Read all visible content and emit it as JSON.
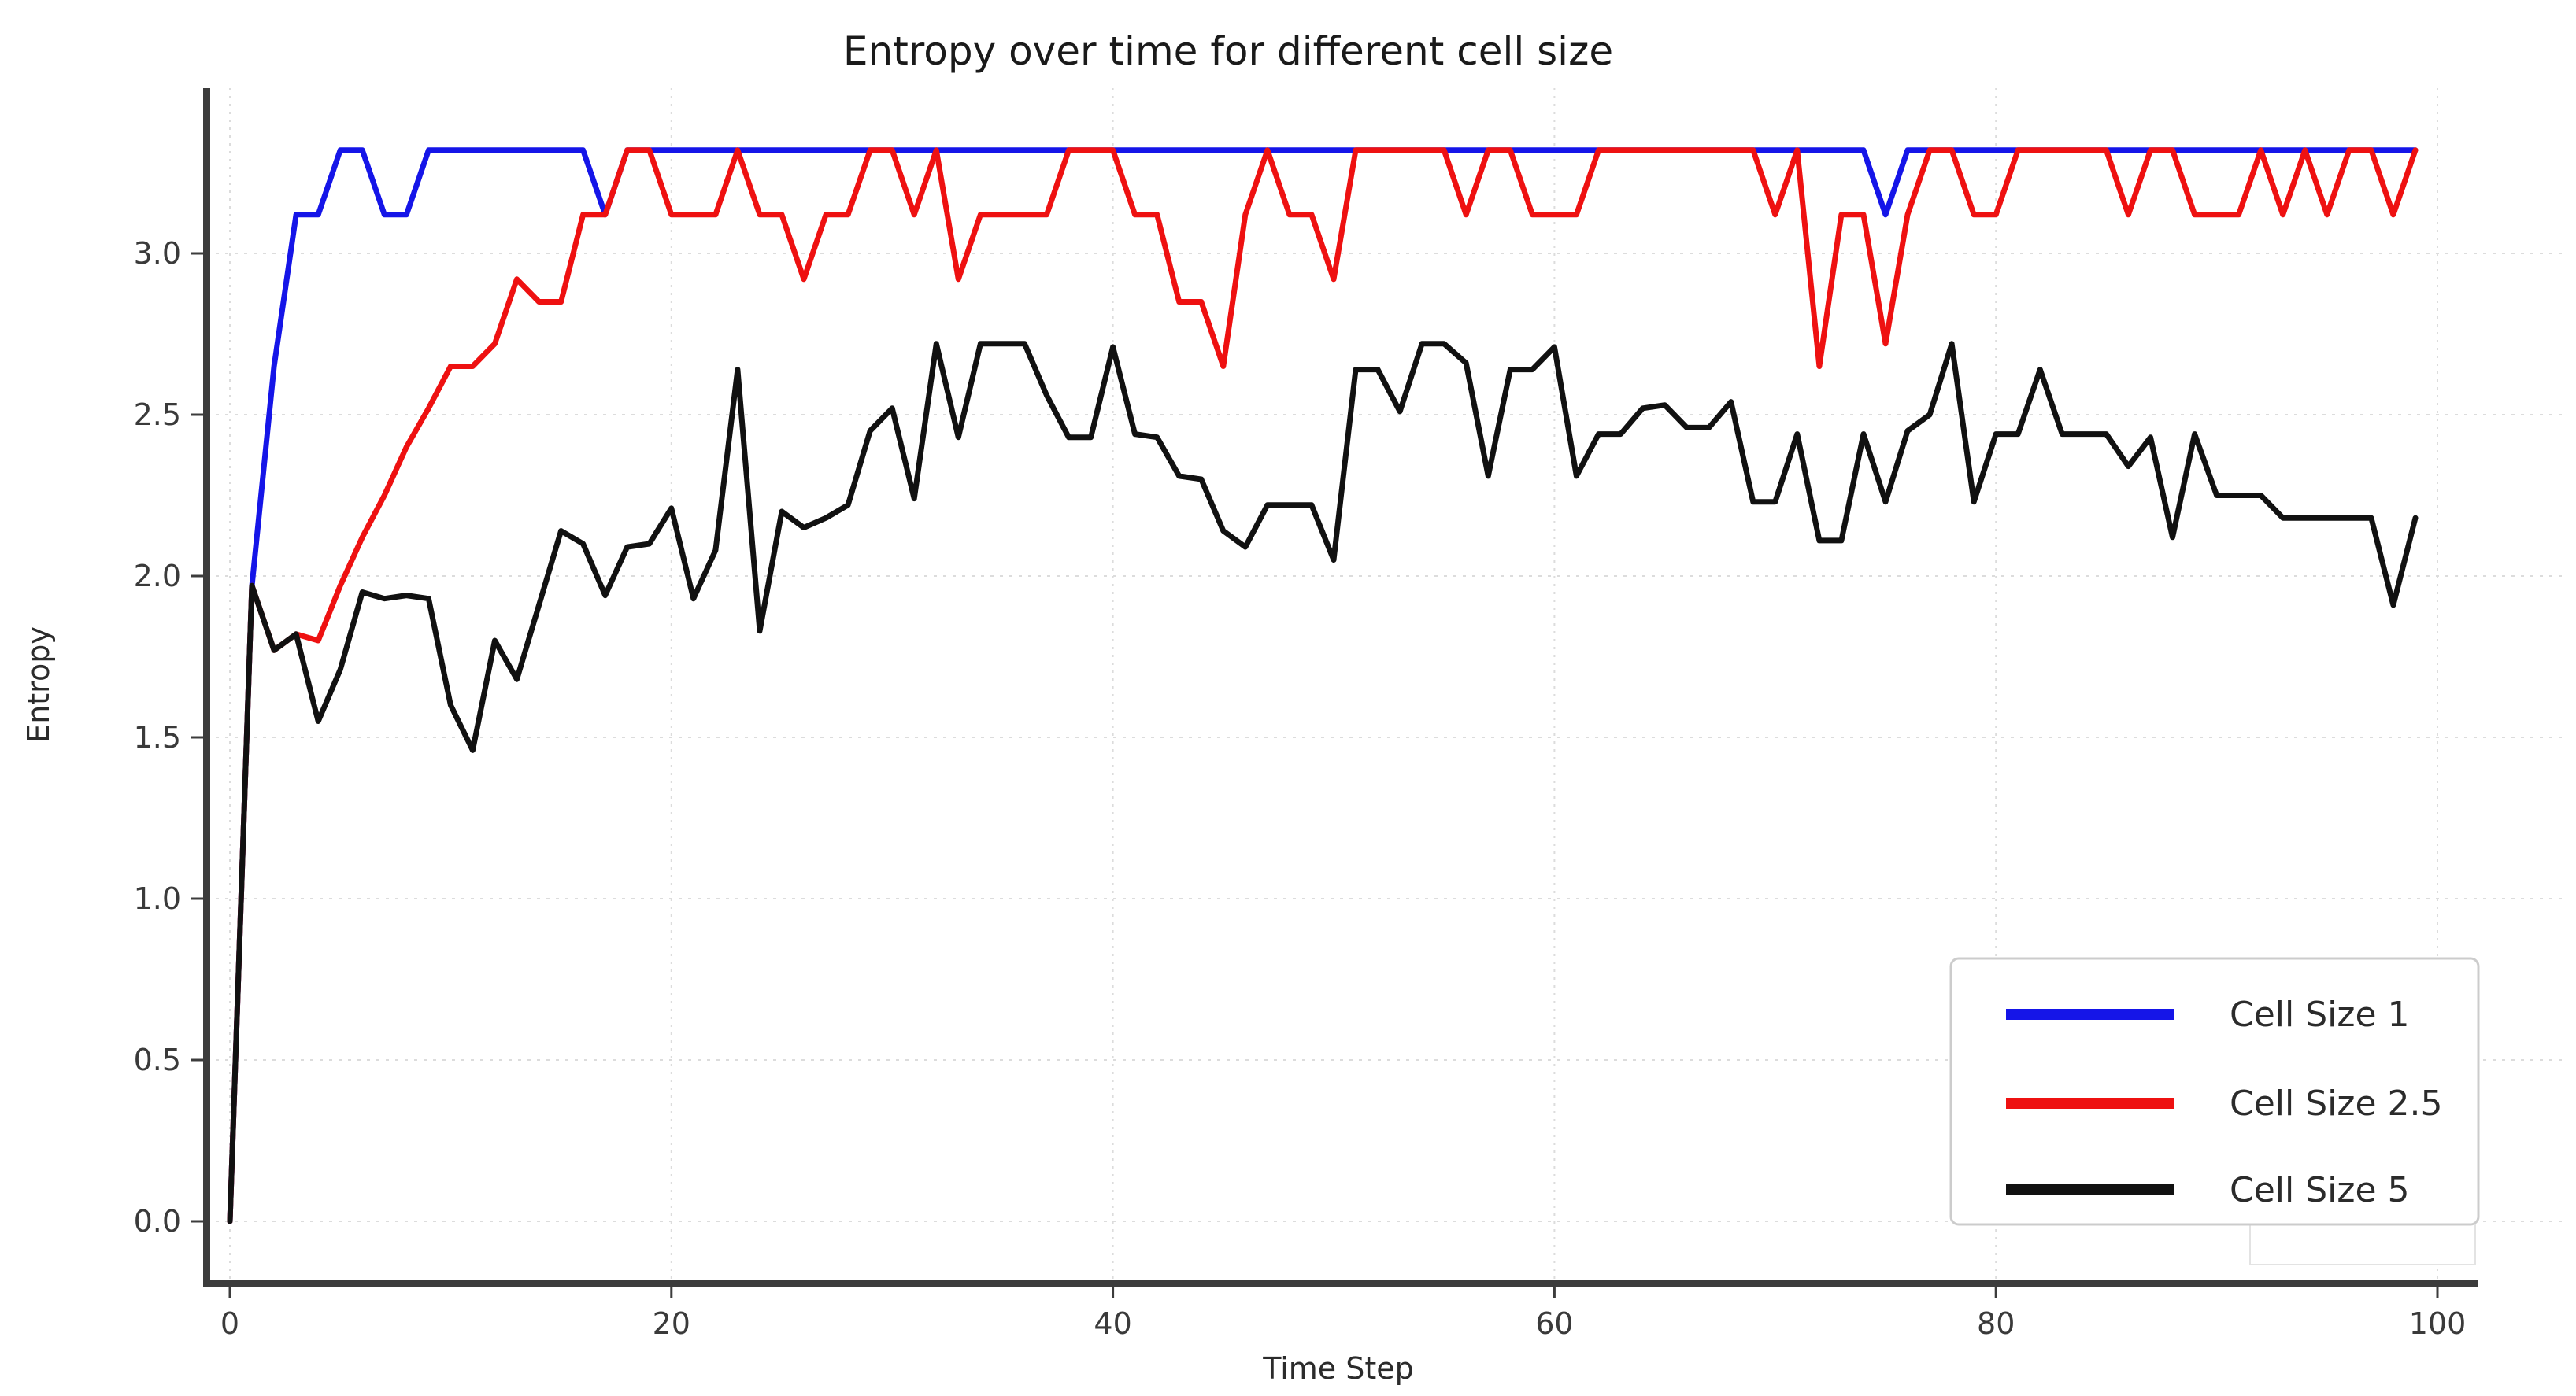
{
  "title": "Entropy over time for  different cell size",
  "xlabel": "Time Step",
  "ylabel": "Entropy",
  "colors": {
    "series_blue": "#1515e8",
    "series_red": "#ee1111",
    "series_black": "#111111",
    "grid": "#dcdcdc",
    "spine": "#3c3c3c",
    "legend_border": "#cccccc",
    "background": "#ffffff"
  },
  "legend": {
    "position": "lower right",
    "items": [
      {
        "label": "Cell Size 1",
        "color": "#1515e8"
      },
      {
        "label": "Cell Size 2.5",
        "color": "#ee1111"
      },
      {
        "label": "Cell Size 5",
        "color": "#111111"
      }
    ]
  },
  "chart_data": {
    "type": "line",
    "title": "Entropy over time for  different cell size",
    "xlabel": "Time Step",
    "ylabel": "Entropy",
    "xlim": [
      -1.1,
      101.8
    ],
    "ylim": [
      -0.19,
      3.5
    ],
    "xticks": [
      0,
      20,
      40,
      60,
      80,
      100
    ],
    "yticks": [
      0.0,
      0.5,
      1.0,
      1.5,
      2.0,
      2.5,
      3.0
    ],
    "grid": true,
    "legend_position": "lower right",
    "x_start": 0,
    "x_step": 1,
    "series": [
      {
        "name": "Cell Size 1",
        "color": "#1515e8",
        "values": [
          0.0,
          1.97,
          2.65,
          3.12,
          3.12,
          3.32,
          3.32,
          3.12,
          3.12,
          3.32,
          3.32,
          3.32,
          3.32,
          3.32,
          3.32,
          3.32,
          3.32,
          3.12,
          3.32,
          3.32,
          3.32,
          3.32,
          3.32,
          3.32,
          3.32,
          3.32,
          3.32,
          3.32,
          3.32,
          3.32,
          3.32,
          3.32,
          3.32,
          3.32,
          3.32,
          3.32,
          3.32,
          3.32,
          3.32,
          3.32,
          3.32,
          3.32,
          3.32,
          3.32,
          3.32,
          3.32,
          3.32,
          3.32,
          3.32,
          3.32,
          3.32,
          3.32,
          3.32,
          3.32,
          3.32,
          3.32,
          3.32,
          3.32,
          3.32,
          3.32,
          3.32,
          3.32,
          3.32,
          3.32,
          3.32,
          3.32,
          3.32,
          3.32,
          3.32,
          3.32,
          3.32,
          3.32,
          3.32,
          3.32,
          3.32,
          3.12,
          3.32,
          3.32,
          3.32,
          3.32,
          3.32,
          3.32,
          3.32,
          3.32,
          3.32,
          3.32,
          3.32,
          3.32,
          3.32,
          3.32,
          3.32,
          3.32,
          3.32,
          3.32,
          3.32,
          3.32,
          3.32,
          3.32,
          3.32,
          3.32
        ]
      },
      {
        "name": "Cell Size 2.5",
        "color": "#ee1111",
        "values": [
          0.0,
          1.97,
          1.77,
          1.82,
          1.8,
          1.97,
          2.12,
          2.25,
          2.4,
          2.52,
          2.65,
          2.65,
          2.72,
          2.92,
          2.85,
          2.85,
          3.12,
          3.12,
          3.32,
          3.32,
          3.12,
          3.12,
          3.12,
          3.32,
          3.12,
          3.12,
          2.92,
          3.12,
          3.12,
          3.32,
          3.32,
          3.12,
          3.32,
          2.92,
          3.12,
          3.12,
          3.12,
          3.12,
          3.32,
          3.32,
          3.32,
          3.12,
          3.12,
          2.85,
          2.85,
          2.65,
          3.12,
          3.32,
          3.12,
          3.12,
          2.92,
          3.32,
          3.32,
          3.32,
          3.32,
          3.32,
          3.12,
          3.32,
          3.32,
          3.12,
          3.12,
          3.12,
          3.32,
          3.32,
          3.32,
          3.32,
          3.32,
          3.32,
          3.32,
          3.32,
          3.12,
          3.32,
          2.65,
          3.12,
          3.12,
          2.72,
          3.12,
          3.32,
          3.32,
          3.12,
          3.12,
          3.32,
          3.32,
          3.32,
          3.32,
          3.32,
          3.12,
          3.32,
          3.32,
          3.12,
          3.12,
          3.12,
          3.32,
          3.12,
          3.32,
          3.12,
          3.32,
          3.32,
          3.12,
          3.32
        ]
      },
      {
        "name": "Cell Size 5",
        "color": "#111111",
        "values": [
          0.0,
          1.97,
          1.77,
          1.82,
          1.55,
          1.71,
          1.95,
          1.93,
          1.94,
          1.93,
          1.6,
          1.46,
          1.8,
          1.68,
          1.91,
          2.14,
          2.1,
          1.94,
          2.09,
          2.1,
          2.21,
          1.93,
          2.08,
          2.64,
          1.83,
          2.2,
          2.15,
          2.18,
          2.22,
          2.45,
          2.52,
          2.24,
          2.72,
          2.43,
          2.72,
          2.72,
          2.72,
          2.56,
          2.43,
          2.43,
          2.71,
          2.44,
          2.43,
          2.31,
          2.3,
          2.14,
          2.09,
          2.22,
          2.22,
          2.22,
          2.05,
          2.64,
          2.64,
          2.51,
          2.72,
          2.72,
          2.66,
          2.31,
          2.64,
          2.64,
          2.71,
          2.31,
          2.44,
          2.44,
          2.52,
          2.53,
          2.46,
          2.46,
          2.54,
          2.23,
          2.23,
          2.44,
          2.11,
          2.11,
          2.44,
          2.23,
          2.45,
          2.5,
          2.72,
          2.23,
          2.44,
          2.44,
          2.64,
          2.44,
          2.44,
          2.44,
          2.34,
          2.43,
          2.12,
          2.44,
          2.25,
          2.25,
          2.25,
          2.18,
          2.18,
          2.18,
          2.18,
          2.18,
          1.91,
          2.18
        ]
      }
    ]
  }
}
